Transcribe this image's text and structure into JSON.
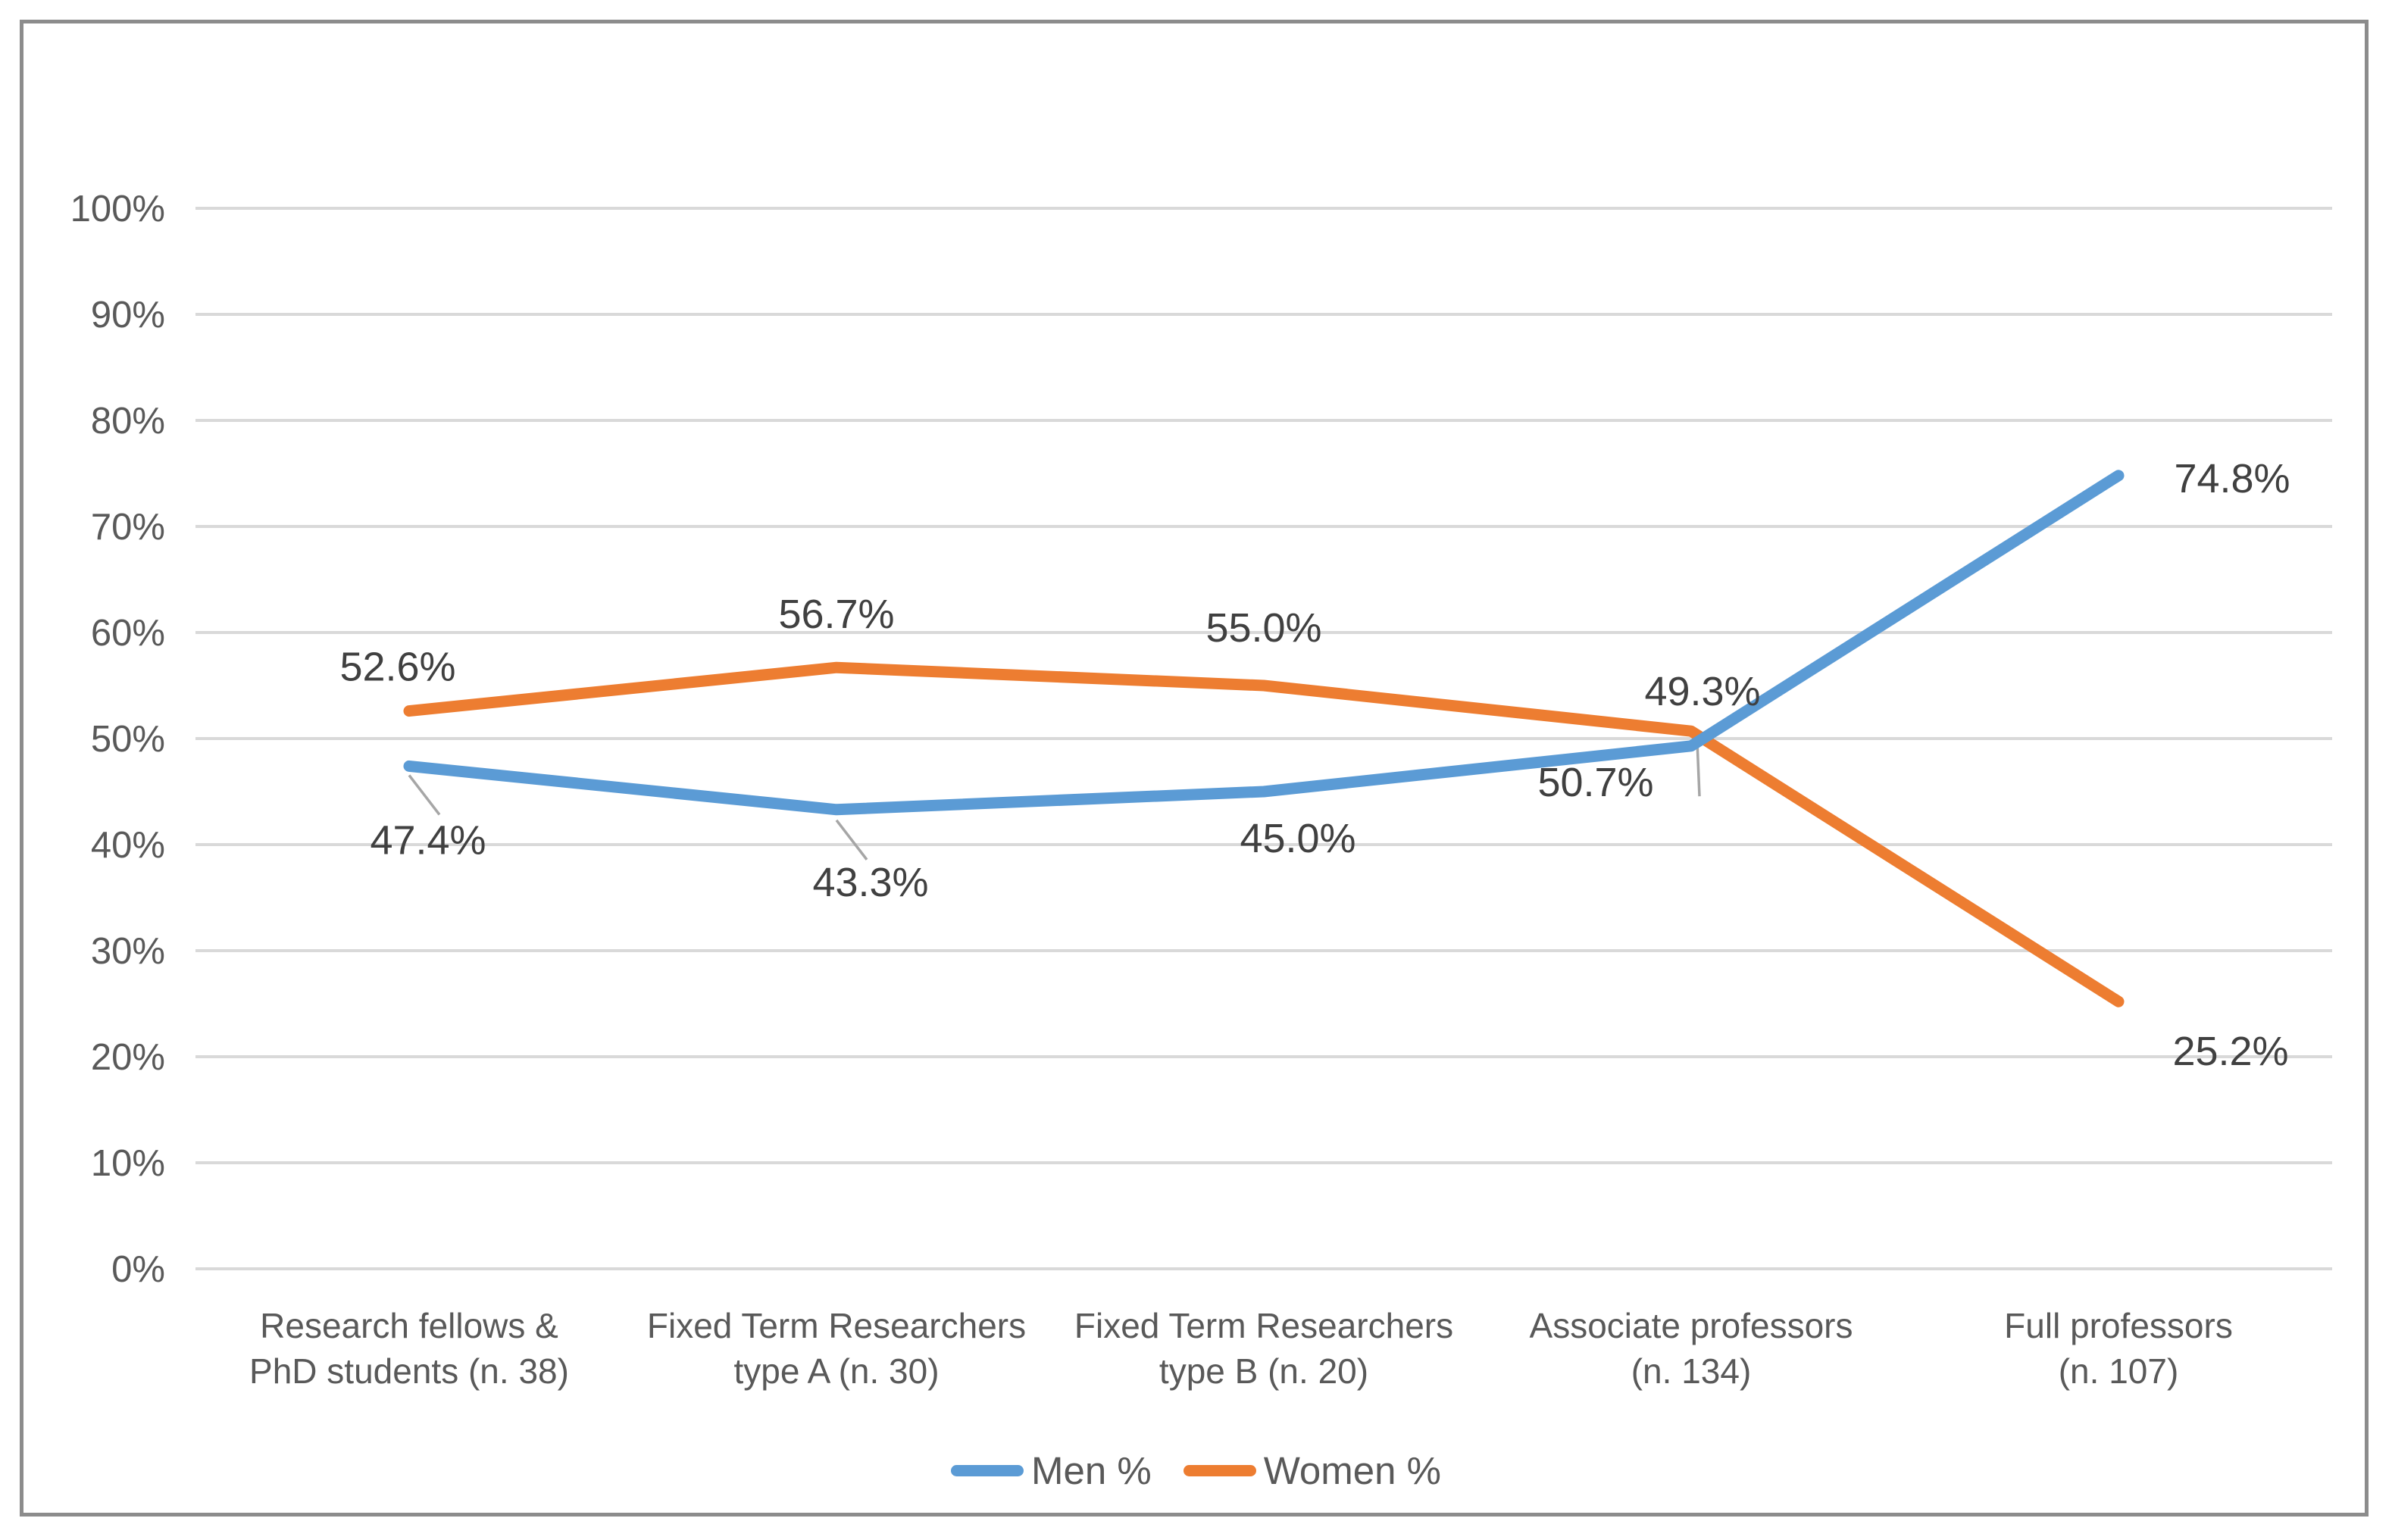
{
  "chart_data": {
    "type": "line",
    "title": "",
    "categories": [
      {
        "label": "Research fellows & PhD students (n. 38)",
        "lines": [
          "Research fellows &",
          "PhD students (n. 38)"
        ]
      },
      {
        "label": "Fixed Term Researchers type A (n. 30)",
        "lines": [
          "Fixed Term Researchers",
          "type A (n. 30)"
        ]
      },
      {
        "label": "Fixed Term Researchers type B (n. 20)",
        "lines": [
          "Fixed Term Researchers",
          "type B (n. 20)"
        ]
      },
      {
        "label": "Associate professors (n. 134)",
        "lines": [
          "Associate professors",
          "(n. 134)"
        ]
      },
      {
        "label": "Full professors (n. 107)",
        "lines": [
          "Full professors",
          "(n. 107)"
        ]
      }
    ],
    "series": [
      {
        "name": "Men %",
        "color": "#5B9BD5",
        "values": [
          47.4,
          43.3,
          45.0,
          49.3,
          74.8
        ],
        "data_labels": [
          "47.4%",
          "43.3%",
          "45.0%",
          "49.3%",
          "74.8%"
        ]
      },
      {
        "name": "Women %",
        "color": "#ED7D31",
        "values": [
          52.6,
          56.7,
          55.0,
          50.7,
          25.2
        ],
        "data_labels": [
          "52.6%",
          "56.7%",
          "55.0%",
          "50.7%",
          "25.2%"
        ]
      }
    ],
    "y_axis": {
      "min": 0,
      "max": 100,
      "step": 10,
      "tick_labels": [
        "0%",
        "10%",
        "20%",
        "30%",
        "40%",
        "50%",
        "60%",
        "70%",
        "80%",
        "90%",
        "100%"
      ]
    },
    "x_axis": {
      "label": ""
    },
    "grid": true,
    "legend_position": "bottom-center"
  },
  "legend": {
    "items": [
      {
        "label": "Men %",
        "color": "#5B9BD5"
      },
      {
        "label": "Women %",
        "color": "#ED7D31"
      }
    ]
  },
  "colors": {
    "gridline": "#D9D9D9",
    "tick_text": "#595959",
    "category_text": "#595959",
    "data_label_text": "#404040",
    "leader_line": "#A6A6A6",
    "frame_border": "#8C8C8C",
    "background": "#FFFFFF"
  }
}
